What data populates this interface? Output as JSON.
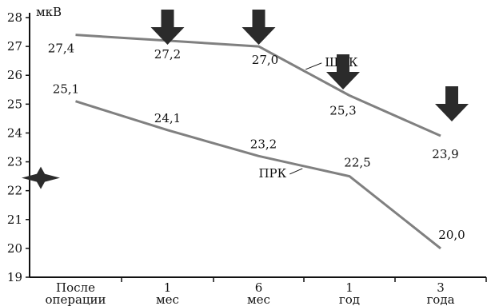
{
  "chart_data": {
    "type": "line",
    "ylabel": "мкВ",
    "ylim": [
      19,
      28
    ],
    "yticks": [
      "19",
      "20",
      "21",
      "22",
      "23",
      "24",
      "25",
      "26",
      "27",
      "28"
    ],
    "categories": [
      "После операции",
      "1 мес",
      "6 мес",
      "1 год",
      "3 года"
    ],
    "series": [
      {
        "name": "ЩЛК",
        "values": [
          27.4,
          27.2,
          27.0,
          25.3,
          23.9
        ],
        "labels": [
          "27,4",
          "27,2",
          "27,0",
          "25,3",
          "23,9"
        ],
        "color": "#808080"
      },
      {
        "name": "ПРК",
        "values": [
          25.1,
          24.1,
          23.2,
          22.5,
          20.0
        ],
        "labels": [
          "25,1",
          "24,1",
          "23,2",
          "22,5",
          "20,0"
        ],
        "color": "#808080"
      }
    ],
    "arrows": {
      "series": "ЩЛК",
      "categories": [
        1,
        2,
        3,
        4
      ],
      "color": "#2b2b2b"
    },
    "star_marker": {
      "y": 22.5,
      "color": "#2b2b2b"
    },
    "grid": false
  }
}
